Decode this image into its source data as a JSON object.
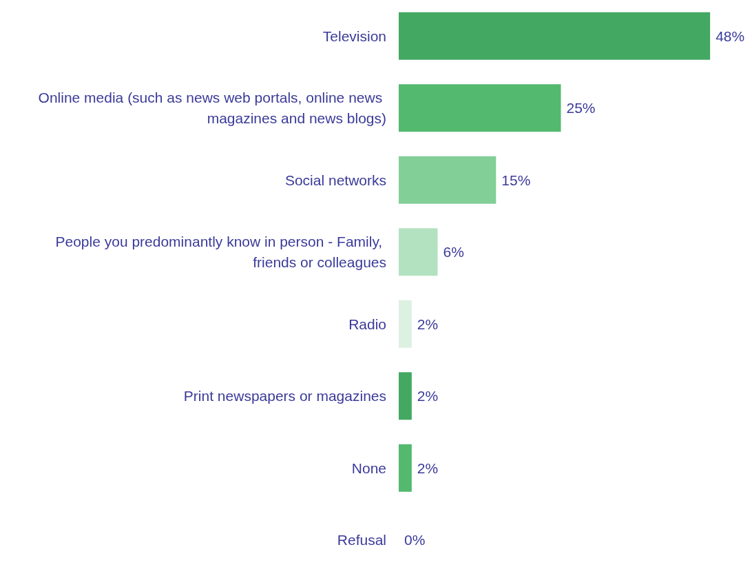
{
  "chart_data": {
    "type": "bar",
    "orientation": "horizontal",
    "categories": [
      "Television",
      "Online media (such as news web portals, online news magazines and news blogs)",
      "Social networks",
      "People you predominantly know in person - Family, friends or colleagues",
      "Radio",
      "Print newspapers or magazines",
      "None",
      "Refusal"
    ],
    "values": [
      48,
      25,
      15,
      6,
      2,
      2,
      2,
      0
    ],
    "colors": [
      "#43a862",
      "#52b96e",
      "#82cf98",
      "#b3e2c1",
      "#dcf1e2",
      "#43a862",
      "#52b96e",
      "#82cf98"
    ],
    "value_labels": [
      "48%",
      "25%",
      "15%",
      "6%",
      "2%",
      "2%",
      "2%",
      "0%"
    ]
  }
}
